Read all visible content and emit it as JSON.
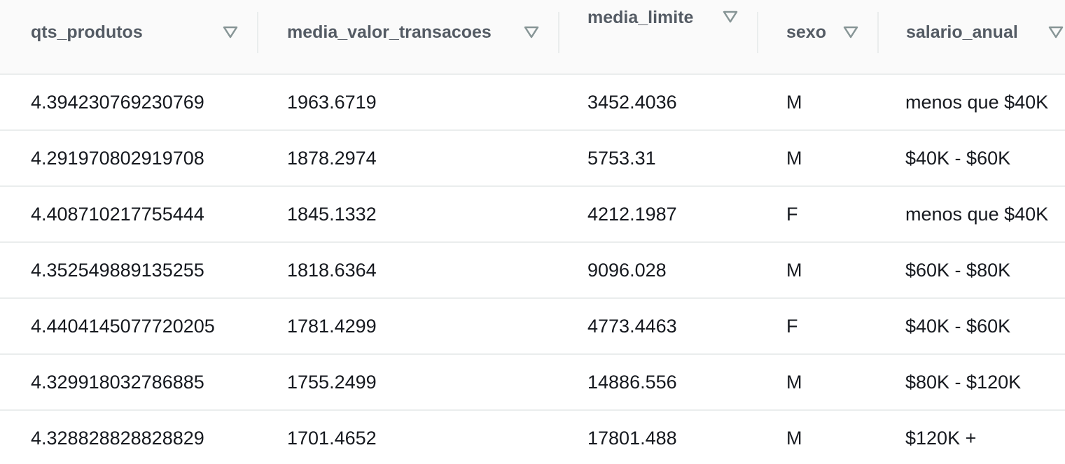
{
  "table": {
    "columns": [
      {
        "key": "qts_produtos",
        "label": "qts_produtos"
      },
      {
        "key": "media_valor_transacoes",
        "label": "media_valor_transacoes"
      },
      {
        "key": "media_limite",
        "label": "media_limite"
      },
      {
        "key": "sexo",
        "label": "sexo"
      },
      {
        "key": "salario_anual",
        "label": "salario_anual"
      }
    ],
    "rows": [
      [
        "4.394230769230769",
        "1963.6719",
        "3452.4036",
        "M",
        "menos que $40K"
      ],
      [
        "4.291970802919708",
        "1878.2974",
        "5753.31",
        "M",
        "$40K - $60K"
      ],
      [
        "4.408710217755444",
        "1845.1332",
        "4212.1987",
        "F",
        "menos que $40K"
      ],
      [
        "4.352549889135255",
        "1818.6364",
        "9096.028",
        "M",
        "$60K - $80K"
      ],
      [
        "4.440414507772020​5",
        "1781.4299",
        "4773.4463",
        "F",
        "$40K - $60K"
      ],
      [
        "4.329918032786885",
        "1755.2499",
        "14886.556",
        "M",
        "$80K - $120K"
      ],
      [
        "4.328828828828829",
        "1701.4652",
        "17801.488",
        "M",
        "$120K +"
      ]
    ]
  },
  "icons": {
    "sort": "sort-descending-triangle-icon"
  },
  "colors": {
    "header_text": "#545b64",
    "cell_text": "#16191f",
    "divider": "#eaeded",
    "icon": "#879596"
  }
}
